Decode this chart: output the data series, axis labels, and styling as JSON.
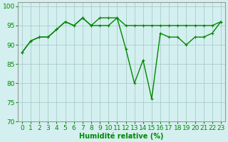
{
  "title": "",
  "xlabel": "Humidité relative (%)",
  "ylabel": "",
  "background_color": "#d4efef",
  "grid_color": "#aacccc",
  "line_color": "#008800",
  "xlim": [
    -0.5,
    23.5
  ],
  "ylim": [
    70,
    101
  ],
  "yticks": [
    70,
    75,
    80,
    85,
    90,
    95,
    100
  ],
  "xticks": [
    0,
    1,
    2,
    3,
    4,
    5,
    6,
    7,
    8,
    9,
    10,
    11,
    12,
    13,
    14,
    15,
    16,
    17,
    18,
    19,
    20,
    21,
    22,
    23
  ],
  "line1_y": [
    88,
    91,
    92,
    92,
    94,
    96,
    95,
    97,
    95,
    95,
    95,
    97,
    89,
    80,
    86,
    76,
    93,
    92,
    92,
    90,
    92,
    92,
    93,
    96
  ],
  "line2_y": [
    88,
    91,
    92,
    92,
    94,
    96,
    95,
    97,
    95,
    97,
    97,
    97,
    95,
    95,
    95,
    95,
    95,
    95,
    95,
    95,
    95,
    95,
    95,
    96
  ],
  "xlabel_fontsize": 7,
  "tick_fontsize": 6.5,
  "linewidth": 1.0,
  "markersize": 2.5
}
